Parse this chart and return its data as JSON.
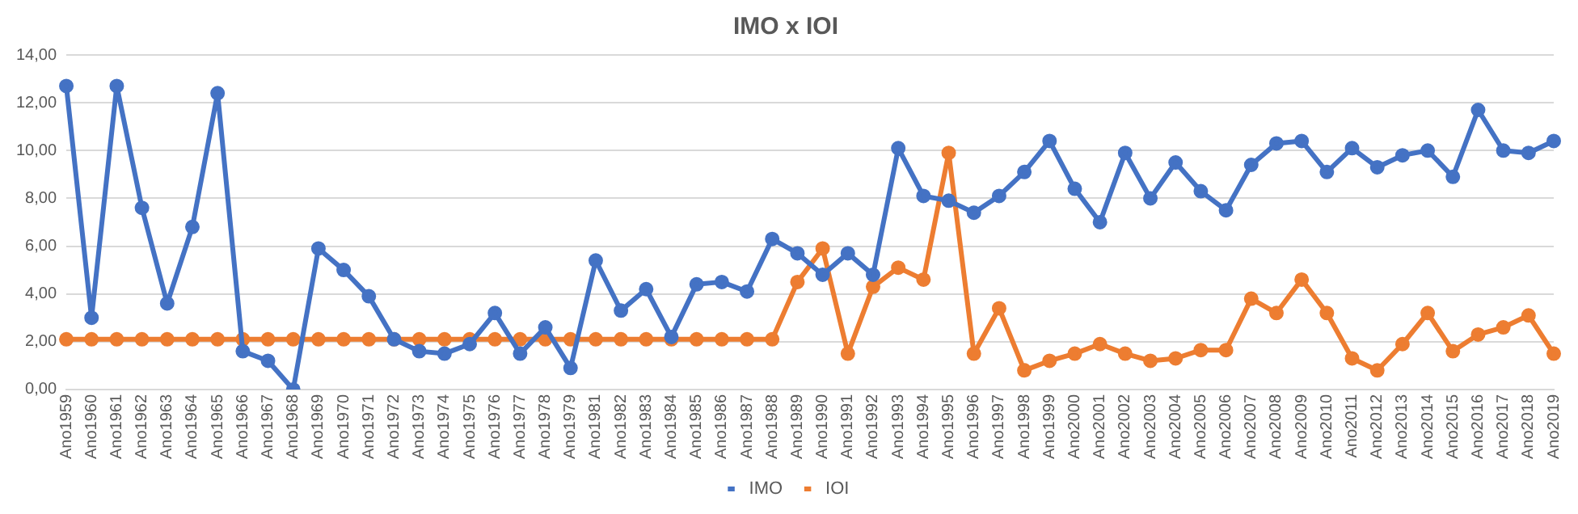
{
  "chart_data": {
    "type": "line",
    "title": "IMO x IOI",
    "categories": [
      "Ano1959",
      "Ano1960",
      "Ano1961",
      "Ano1962",
      "Ano1963",
      "Ano1964",
      "Ano1965",
      "Ano1966",
      "Ano1967",
      "Ano1968",
      "Ano1969",
      "Ano1970",
      "Ano1971",
      "Ano1972",
      "Ano1973",
      "Ano1974",
      "Ano1975",
      "Ano1976",
      "Ano1977",
      "Ano1978",
      "Ano1979",
      "Ano1981",
      "Ano1982",
      "Ano1983",
      "Ano1984",
      "Ano1985",
      "Ano1986",
      "Ano1987",
      "Ano1988",
      "Ano1989",
      "Ano1990",
      "Ano1991",
      "Ano1992",
      "Ano1993",
      "Ano1994",
      "Ano1995",
      "Ano1996",
      "Ano1997",
      "Ano1998",
      "Ano1999",
      "Ano2000",
      "Ano2001",
      "Ano2002",
      "Ano2003",
      "Ano2004",
      "Ano2005",
      "Ano2006",
      "Ano2007",
      "Ano2008",
      "Ano2009",
      "Ano2010",
      "Ano2011",
      "Ano2012",
      "Ano2013",
      "Ano2014",
      "Ano2015",
      "Ano2016",
      "Ano2017",
      "Ano2018",
      "Ano2019"
    ],
    "series": [
      {
        "name": "IMO",
        "color": "#4472c4",
        "values": [
          12.7,
          3.0,
          12.7,
          7.6,
          3.6,
          6.8,
          12.4,
          1.6,
          1.2,
          0.0,
          5.9,
          5.0,
          3.9,
          2.1,
          1.6,
          1.5,
          1.9,
          3.2,
          1.5,
          2.6,
          0.9,
          5.4,
          3.3,
          4.2,
          2.2,
          4.4,
          4.5,
          4.1,
          6.3,
          5.7,
          4.8,
          5.7,
          4.8,
          10.1,
          8.1,
          7.9,
          7.4,
          8.1,
          9.1,
          10.4,
          8.4,
          7.0,
          9.9,
          8.0,
          9.5,
          8.3,
          7.5,
          9.4,
          10.3,
          10.4,
          9.1,
          10.1,
          9.3,
          9.8,
          10.0,
          8.9,
          11.7,
          10.0,
          9.9,
          10.4
        ]
      },
      {
        "name": "IOI",
        "color": "#ed7d31",
        "values": [
          2.1,
          2.1,
          2.1,
          2.1,
          2.1,
          2.1,
          2.1,
          2.1,
          2.1,
          2.1,
          2.1,
          2.1,
          2.1,
          2.1,
          2.1,
          2.1,
          2.1,
          2.1,
          2.1,
          2.1,
          2.1,
          2.1,
          2.1,
          2.1,
          2.1,
          2.1,
          2.1,
          2.1,
          2.1,
          4.5,
          5.9,
          1.5,
          4.3,
          5.1,
          4.6,
          9.9,
          1.5,
          3.4,
          0.8,
          1.2,
          1.5,
          1.9,
          1.5,
          1.2,
          1.3,
          1.65,
          1.65,
          3.8,
          3.2,
          4.6,
          3.2,
          1.3,
          0.8,
          1.9,
          3.2,
          1.6,
          2.3,
          2.6,
          3.1,
          1.5
        ]
      }
    ],
    "ylim": [
      0,
      14
    ],
    "yticks": [
      {
        "value": 0,
        "label": "0,00"
      },
      {
        "value": 2,
        "label": "2,00"
      },
      {
        "value": 4,
        "label": "4,00"
      },
      {
        "value": 6,
        "label": "6,00"
      },
      {
        "value": 8,
        "label": "8,00"
      },
      {
        "value": 10,
        "label": "10,00"
      },
      {
        "value": 12,
        "label": "12,00"
      },
      {
        "value": 14,
        "label": "14,00"
      }
    ],
    "grid": "y",
    "legend": "bottom",
    "marker": "circle",
    "line_style": "solid"
  }
}
